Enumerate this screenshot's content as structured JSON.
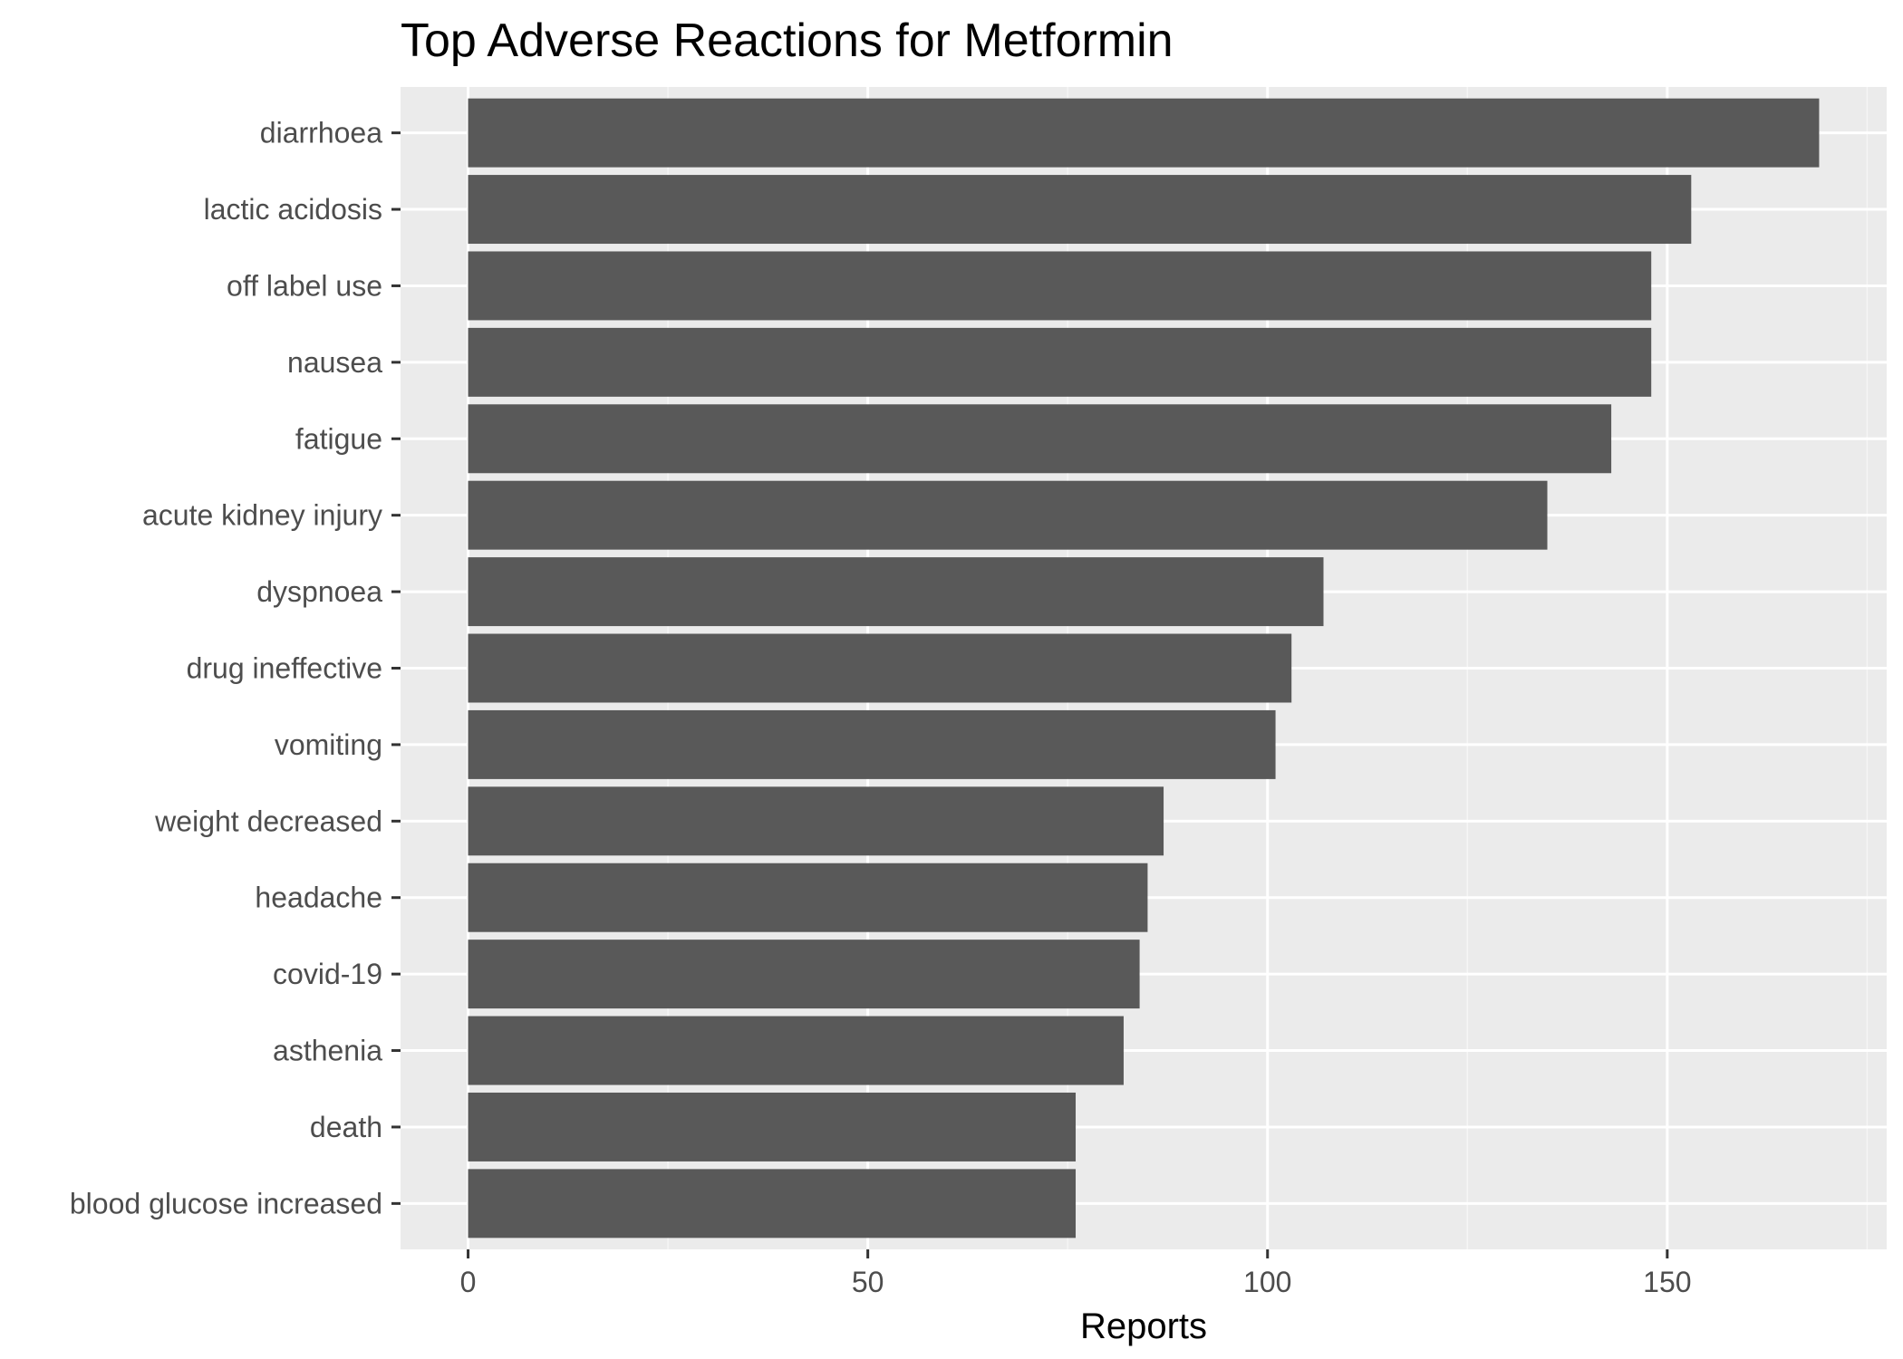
{
  "chart_data": {
    "type": "bar",
    "orientation": "horizontal",
    "title": "Top Adverse Reactions for Metformin",
    "xlabel": "Reports",
    "ylabel": "",
    "categories": [
      "diarrhoea",
      "lactic acidosis",
      "off label use",
      "nausea",
      "fatigue",
      "acute kidney injury",
      "dyspnoea",
      "drug ineffective",
      "vomiting",
      "weight decreased",
      "headache",
      "covid-19",
      "asthenia",
      "death",
      "blood glucose increased"
    ],
    "values": [
      169,
      153,
      148,
      148,
      143,
      135,
      107,
      103,
      101,
      87,
      85,
      84,
      82,
      76,
      76
    ],
    "xlim": [
      -8.45,
      177.45
    ],
    "xticks": [
      0,
      50,
      100,
      150
    ],
    "xtick_labels": [
      "0",
      "50",
      "100",
      "150"
    ],
    "grid": true,
    "legend": "none",
    "colors": {
      "bar": "#595959",
      "panel_background": "#ebebeb",
      "grid_major": "#ffffff",
      "grid_minor": "#f5f5f5",
      "page_background": "#ffffff"
    }
  }
}
